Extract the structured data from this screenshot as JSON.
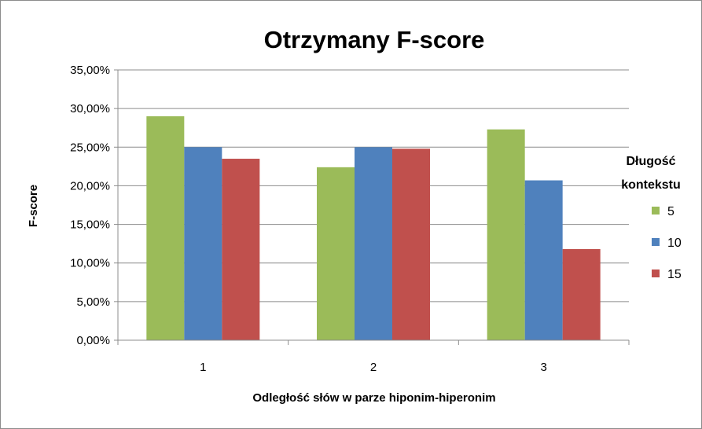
{
  "chart_data": {
    "type": "bar",
    "title": "Otrzymany F-score",
    "xlabel": "Odległość słów w parze hiponim-hiperonim",
    "ylabel": "F-score",
    "categories": [
      "1",
      "2",
      "3"
    ],
    "ylim": [
      0,
      35
    ],
    "yticks": [
      0,
      5,
      10,
      15,
      20,
      25,
      30,
      35
    ],
    "ytick_labels": [
      "0,00%",
      "5,00%",
      "10,00%",
      "15,00%",
      "20,00%",
      "25,00%",
      "30,00%",
      "35,00%"
    ],
    "grid": true,
    "legend": {
      "title_lines": [
        "Długość",
        "kontekstu"
      ],
      "placement": "right"
    },
    "series": [
      {
        "name": "5",
        "color": "#9bbb59",
        "values": [
          29.0,
          22.4,
          27.3
        ]
      },
      {
        "name": "10",
        "color": "#4f81bd",
        "values": [
          25.0,
          25.0,
          20.7
        ]
      },
      {
        "name": "15",
        "color": "#c0504d",
        "values": [
          23.5,
          24.8,
          11.8
        ]
      }
    ]
  }
}
